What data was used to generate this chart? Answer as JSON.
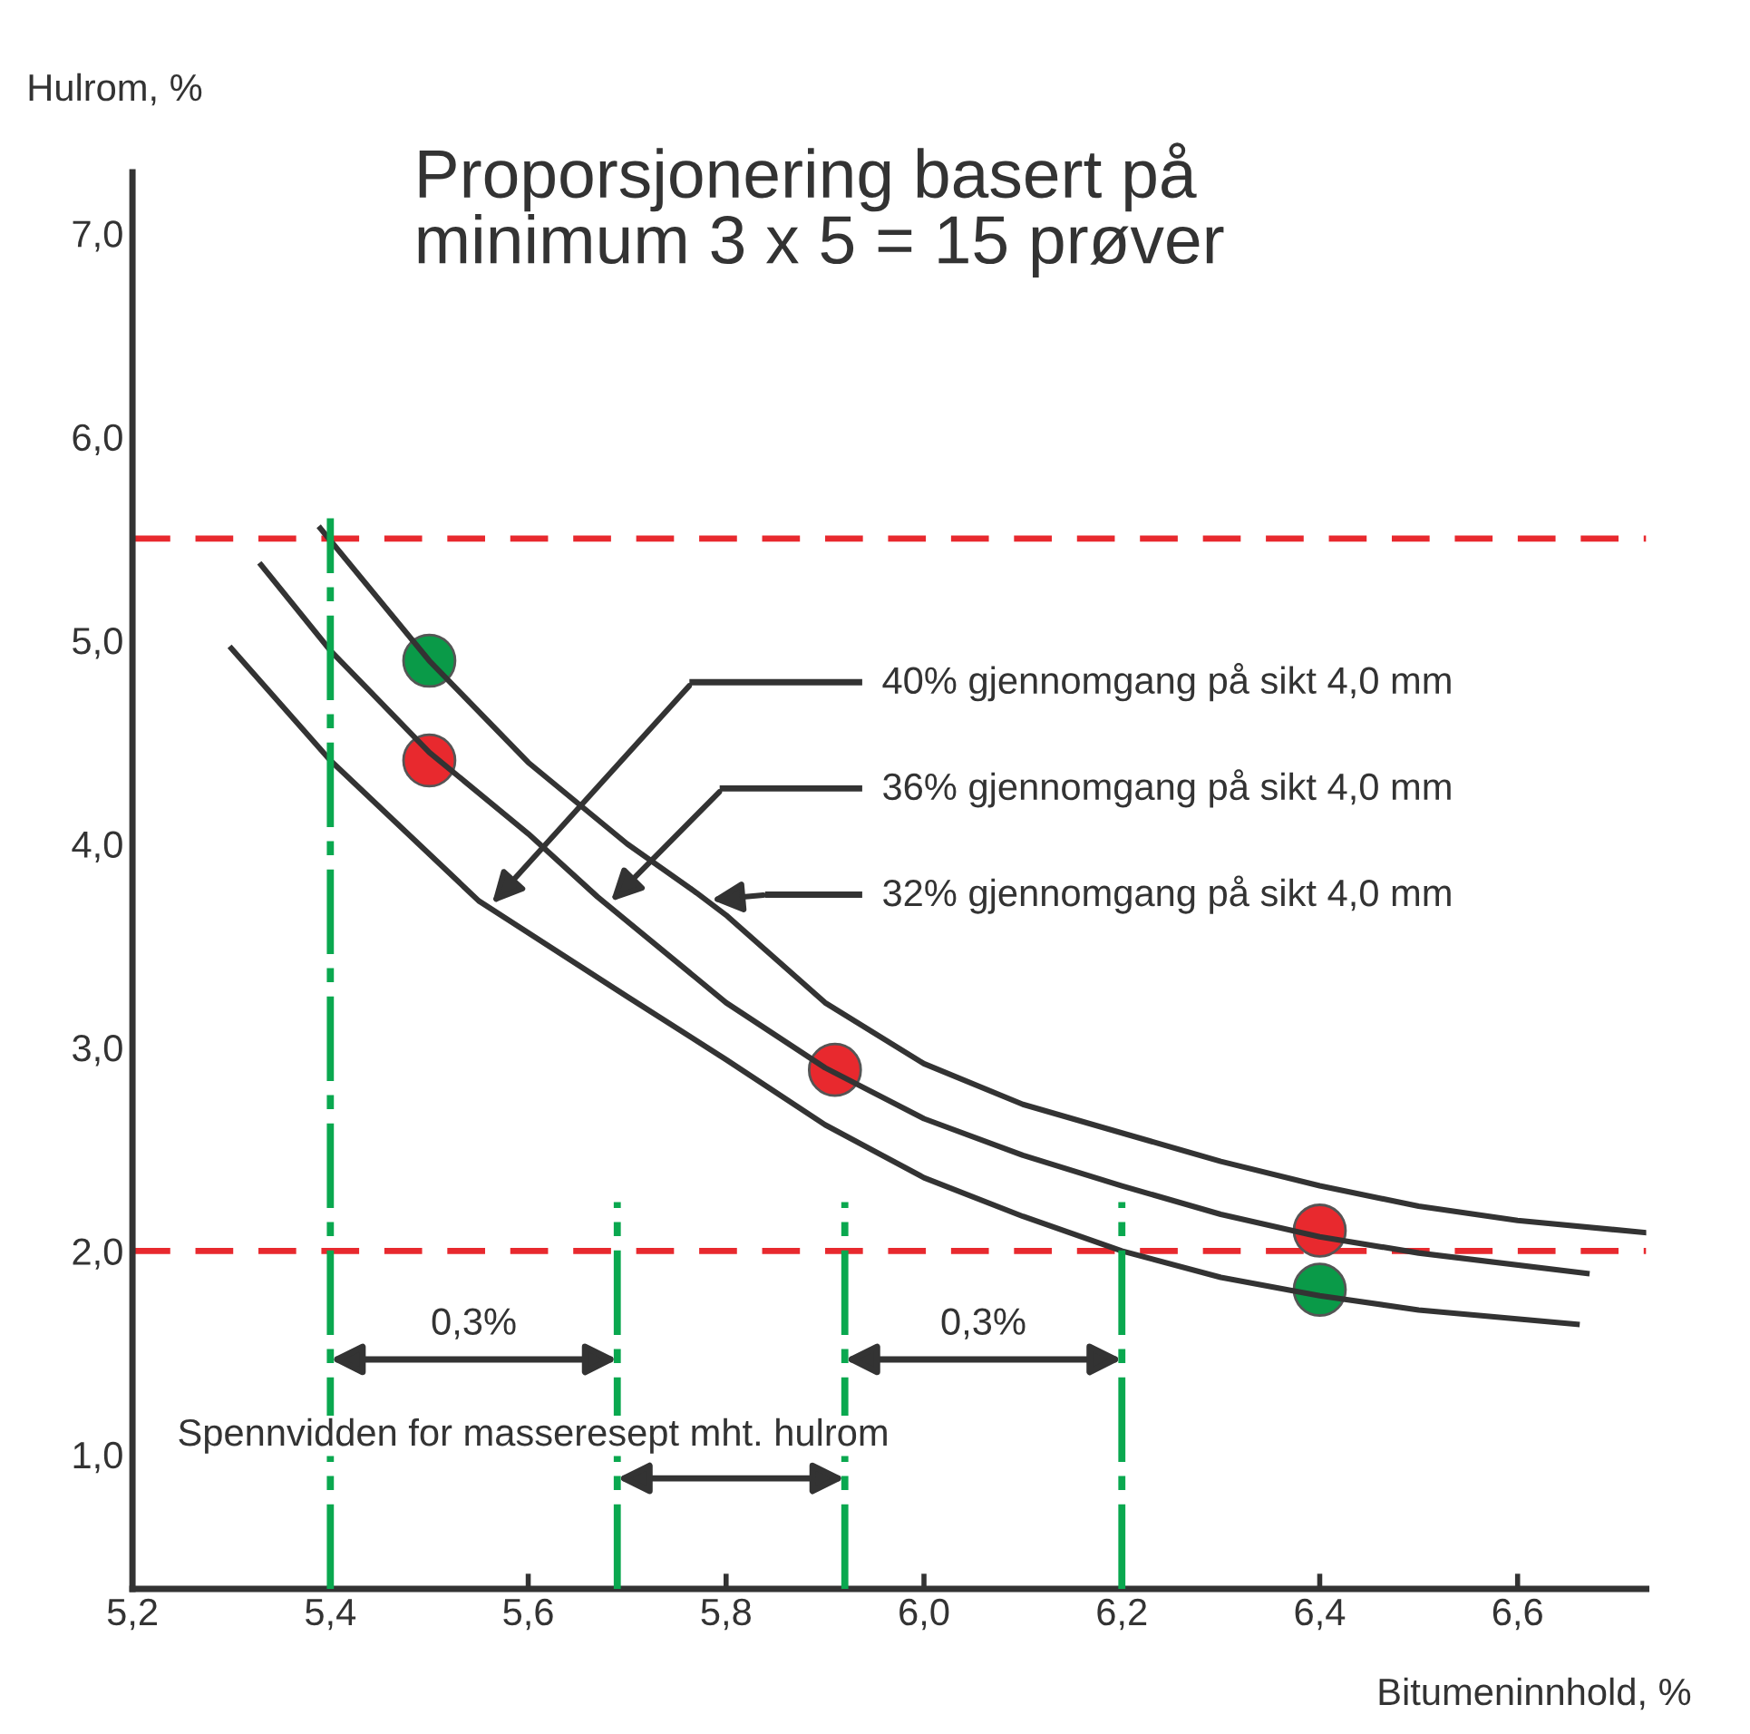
{
  "chart_data": {
    "type": "line",
    "title": "Proporsjonering basert på\nminimum 3 x 5 = 15 prøver",
    "xlabel": "Bitumeninnhold, %",
    "ylabel": "Hulrom, %",
    "xlim": [
      5.2,
      6.73
    ],
    "ylim": [
      0.34,
      7.3
    ],
    "xticks": [
      {
        "value": 5.2,
        "label": "5,2"
      },
      {
        "value": 5.4,
        "label": "5,4"
      },
      {
        "value": 5.6,
        "label": "5,6"
      },
      {
        "value": 5.8,
        "label": "5,8"
      },
      {
        "value": 6.0,
        "label": "6,0"
      },
      {
        "value": 6.2,
        "label": "6,2"
      },
      {
        "value": 6.4,
        "label": "6,4"
      },
      {
        "value": 6.6,
        "label": "6,6"
      }
    ],
    "yticks": [
      {
        "value": 1,
        "label": "1,0"
      },
      {
        "value": 2,
        "label": "2,0"
      },
      {
        "value": 3,
        "label": "3,0"
      },
      {
        "value": 4,
        "label": "4,0"
      },
      {
        "value": 5,
        "label": "5,0"
      },
      {
        "value": 6,
        "label": "6,0"
      },
      {
        "value": 7,
        "label": "7,0"
      }
    ],
    "grid": false,
    "legend": "right",
    "series": [
      {
        "name": "40% gjennomgang på sikt 4,0 mm",
        "color": "#333333",
        "x": [
          5.3,
          5.4,
          5.55,
          5.7,
          5.8,
          5.9,
          6.0,
          6.1,
          6.2,
          6.3,
          6.4,
          6.5,
          6.66
        ],
        "values": [
          4.96,
          4.41,
          3.72,
          3.25,
          2.94,
          2.62,
          2.36,
          2.17,
          2.0,
          1.87,
          1.78,
          1.71,
          1.64
        ]
      },
      {
        "name": "36% gjennomgang på sikt 4,0 mm",
        "color": "#333333",
        "x": [
          5.33,
          5.4,
          5.5,
          5.6,
          5.67,
          5.8,
          5.9,
          6.0,
          6.1,
          6.2,
          6.3,
          6.4,
          6.5,
          6.67
        ],
        "values": [
          5.37,
          4.95,
          4.45,
          4.05,
          3.74,
          3.22,
          2.9,
          2.65,
          2.47,
          2.32,
          2.18,
          2.07,
          1.99,
          1.89
        ]
      },
      {
        "name": "32% gjennomgang på sikt 4,0 mm",
        "color": "#333333",
        "x": [
          5.39,
          5.5,
          5.6,
          5.7,
          5.77,
          5.8,
          5.9,
          6.0,
          6.1,
          6.2,
          6.3,
          6.4,
          6.5,
          6.6,
          6.73
        ],
        "values": [
          5.55,
          4.9,
          4.4,
          4.0,
          3.76,
          3.65,
          3.22,
          2.92,
          2.72,
          2.58,
          2.44,
          2.32,
          2.22,
          2.15,
          2.09
        ]
      },
      {
        "type": "scatter",
        "marker": "circle",
        "color": "#0a9a48",
        "x": [
          5.5,
          6.4
        ],
        "values": [
          4.9,
          1.81
        ]
      },
      {
        "type": "scatter",
        "marker": "circle",
        "color": "#e8292e",
        "x": [
          5.5,
          5.91,
          6.4
        ],
        "values": [
          4.41,
          2.89,
          2.1
        ]
      },
      {
        "color": "#0aa84f",
        "line_style": "dashdot",
        "x": [
          5.4,
          5.4
        ],
        "values": [
          0.34,
          5.6
        ]
      },
      {
        "color": "#0aa84f",
        "line_style": "dashdot",
        "x": [
          5.69,
          5.69
        ],
        "values": [
          0.34,
          2.24
        ]
      },
      {
        "color": "#0aa84f",
        "line_style": "dashdot",
        "x": [
          5.92,
          5.92
        ],
        "values": [
          0.34,
          2.24
        ]
      },
      {
        "color": "#0aa84f",
        "line_style": "dashdot",
        "x": [
          6.2,
          6.2
        ],
        "values": [
          0.34,
          2.24
        ]
      }
    ],
    "ref_lines": [
      {
        "axis": "y",
        "value": 5.5,
        "color": "#e8292e",
        "line_style": "dashed"
      },
      {
        "axis": "y",
        "value": 2.0,
        "color": "#e8292e",
        "line_style": "dashed"
      }
    ],
    "annotations": [
      "0,3%",
      "0,3%",
      "Spennvidden for masseresept mht. hulrom"
    ]
  }
}
